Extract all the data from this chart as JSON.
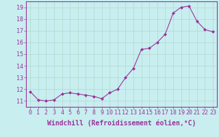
{
  "x": [
    0,
    1,
    2,
    3,
    4,
    5,
    6,
    7,
    8,
    9,
    10,
    11,
    12,
    13,
    14,
    15,
    16,
    17,
    18,
    19,
    20,
    21,
    22,
    23
  ],
  "y": [
    11.8,
    11.1,
    11.0,
    11.1,
    11.6,
    11.7,
    11.6,
    11.5,
    11.4,
    11.2,
    11.7,
    12.0,
    13.0,
    13.8,
    15.4,
    15.5,
    16.0,
    16.7,
    18.5,
    19.0,
    19.1,
    17.8,
    17.1,
    16.9
  ],
  "ylim": [
    10.5,
    19.5
  ],
  "yticks": [
    11,
    12,
    13,
    14,
    15,
    16,
    17,
    18,
    19
  ],
  "xticks": [
    0,
    1,
    2,
    3,
    4,
    5,
    6,
    7,
    8,
    9,
    10,
    11,
    12,
    13,
    14,
    15,
    16,
    17,
    18,
    19,
    20,
    21,
    22,
    23
  ],
  "xlabel": "Windchill (Refroidissement éolien,°C)",
  "line_color": "#993399",
  "marker": "D",
  "marker_size": 2.0,
  "bg_color": "#c8eef0",
  "grid_color": "#b0d8cc",
  "tick_color": "#993399",
  "label_color": "#993399",
  "axis_color": "#993399",
  "font_size_tick": 6,
  "font_size_label": 7
}
